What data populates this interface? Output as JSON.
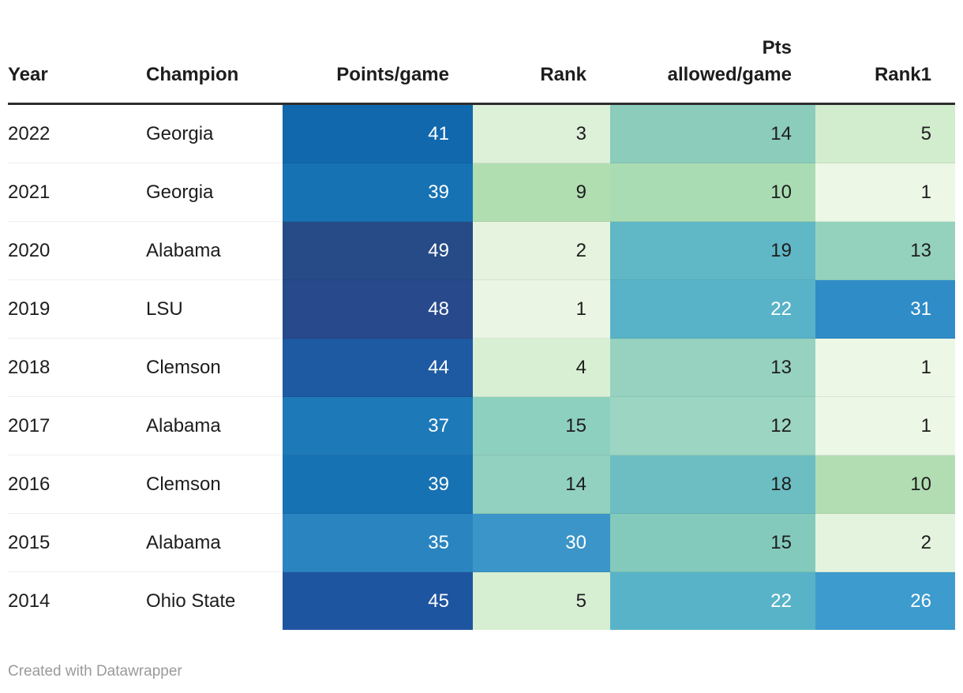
{
  "chart_data": {
    "type": "table",
    "columns": [
      {
        "label": "Year",
        "align": "left"
      },
      {
        "label": "Champion",
        "align": "left"
      },
      {
        "label": "Points/game",
        "align": "right"
      },
      {
        "label": "Rank",
        "align": "right"
      },
      {
        "label": "Pts\nallowed/game",
        "align": "right"
      },
      {
        "label": "Rank1",
        "align": "right"
      }
    ],
    "rows": [
      {
        "year": "2022",
        "champion": "Georgia",
        "cells": [
          {
            "v": "41",
            "bg": "#1168ad",
            "fg": "#ffffff"
          },
          {
            "v": "3",
            "bg": "#ddf0d8",
            "fg": "#1d1d1d"
          },
          {
            "v": "14",
            "bg": "#8bccbb",
            "fg": "#1d1d1d"
          },
          {
            "v": "5",
            "bg": "#d2ecce",
            "fg": "#1d1d1d"
          }
        ]
      },
      {
        "year": "2021",
        "champion": "Georgia",
        "cells": [
          {
            "v": "39",
            "bg": "#1772b4",
            "fg": "#ffffff"
          },
          {
            "v": "9",
            "bg": "#b0deb1",
            "fg": "#1d1d1d"
          },
          {
            "v": "10",
            "bg": "#aadcb3",
            "fg": "#1d1d1d"
          },
          {
            "v": "1",
            "bg": "#ecf7e6",
            "fg": "#1d1d1d"
          }
        ]
      },
      {
        "year": "2020",
        "champion": "Alabama",
        "cells": [
          {
            "v": "49",
            "bg": "#264b86",
            "fg": "#ffffff"
          },
          {
            "v": "2",
            "bg": "#e6f4df",
            "fg": "#1d1d1d"
          },
          {
            "v": "19",
            "bg": "#60b7c5",
            "fg": "#1d1d1d"
          },
          {
            "v": "13",
            "bg": "#95d2bd",
            "fg": "#1d1d1d"
          }
        ]
      },
      {
        "year": "2019",
        "champion": "LSU",
        "cells": [
          {
            "v": "48",
            "bg": "#28498b",
            "fg": "#ffffff"
          },
          {
            "v": "1",
            "bg": "#eaf6e3",
            "fg": "#1d1d1d"
          },
          {
            "v": "22",
            "bg": "#58b3c8",
            "fg": "#ffffff"
          },
          {
            "v": "31",
            "bg": "#2f8cc7",
            "fg": "#ffffff"
          }
        ]
      },
      {
        "year": "2018",
        "champion": "Clemson",
        "cells": [
          {
            "v": "44",
            "bg": "#1d5aa1",
            "fg": "#ffffff"
          },
          {
            "v": "4",
            "bg": "#d9efd3",
            "fg": "#1d1d1d"
          },
          {
            "v": "13",
            "bg": "#96d2bf",
            "fg": "#1d1d1d"
          },
          {
            "v": "1",
            "bg": "#ecf7e6",
            "fg": "#1d1d1d"
          }
        ]
      },
      {
        "year": "2017",
        "champion": "Alabama",
        "cells": [
          {
            "v": "37",
            "bg": "#1e79b8",
            "fg": "#ffffff"
          },
          {
            "v": "15",
            "bg": "#8ed0c0",
            "fg": "#1d1d1d"
          },
          {
            "v": "12",
            "bg": "#9cd5c2",
            "fg": "#1d1d1d"
          },
          {
            "v": "1",
            "bg": "#ecf7e6",
            "fg": "#1d1d1d"
          }
        ]
      },
      {
        "year": "2016",
        "champion": "Clemson",
        "cells": [
          {
            "v": "39",
            "bg": "#1772b4",
            "fg": "#ffffff"
          },
          {
            "v": "14",
            "bg": "#92d1bf",
            "fg": "#1d1d1d"
          },
          {
            "v": "18",
            "bg": "#6cbec2",
            "fg": "#1d1d1d"
          },
          {
            "v": "10",
            "bg": "#b2ddb3",
            "fg": "#1d1d1d"
          }
        ]
      },
      {
        "year": "2015",
        "champion": "Alabama",
        "cells": [
          {
            "v": "35",
            "bg": "#2a84c0",
            "fg": "#ffffff"
          },
          {
            "v": "30",
            "bg": "#3b95c8",
            "fg": "#ffffff"
          },
          {
            "v": "15",
            "bg": "#83cabc",
            "fg": "#1d1d1d"
          },
          {
            "v": "2",
            "bg": "#e4f3dd",
            "fg": "#1d1d1d"
          }
        ]
      },
      {
        "year": "2014",
        "champion": "Ohio State",
        "cells": [
          {
            "v": "45",
            "bg": "#1e55a0",
            "fg": "#ffffff"
          },
          {
            "v": "5",
            "bg": "#d6eed1",
            "fg": "#1d1d1d"
          },
          {
            "v": "22",
            "bg": "#58b3c8",
            "fg": "#ffffff"
          },
          {
            "v": "26",
            "bg": "#3d9bcd",
            "fg": "#ffffff"
          }
        ]
      }
    ],
    "layout_hints": {
      "heatmap_columns": [
        "Points/game",
        "Rank",
        "Pts allowed/game",
        "Rank1"
      ],
      "blue_scale_high": "#264b86",
      "blue_scale_low": "#2a84c0",
      "green_scale_low": "#ecf7e6",
      "green_scale_high": "#2f8cc7"
    }
  },
  "footer": {
    "credit": "Created with Datawrapper"
  },
  "colors": {
    "background": "#ffffff",
    "header_rule": "#2e2e2e",
    "text": "#1d1d1d",
    "credit_text": "#9a9a9a"
  }
}
